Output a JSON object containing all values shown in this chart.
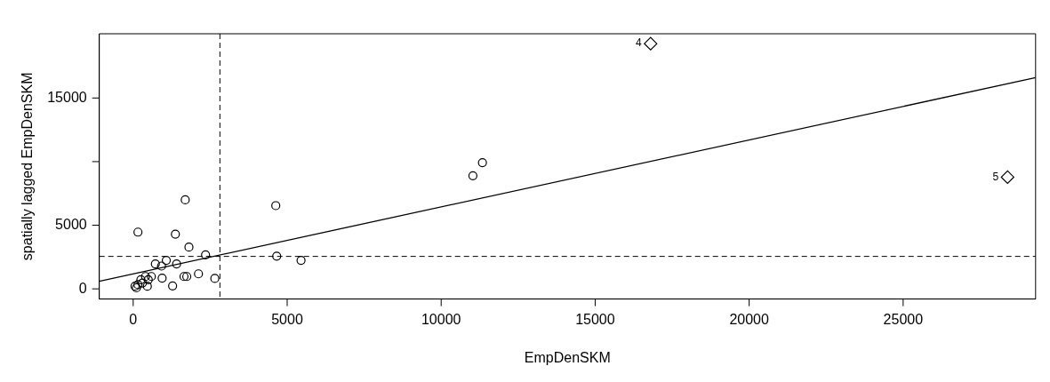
{
  "chart_data": {
    "type": "scatter",
    "xlabel": "EmpDenSKM",
    "ylabel": "spatially lagged EmpDenSKM",
    "xlim": [
      -1100,
      29300
    ],
    "ylim": [
      -800,
      20050
    ],
    "xticks": [
      0,
      5000,
      10000,
      15000,
      20000,
      25000
    ],
    "yticks": [
      0,
      5000,
      {
        "value": 10000,
        "label": null
      },
      15000
    ],
    "grid": false,
    "legend": false,
    "series": [
      {
        "type": "scatter",
        "marker": "circle",
        "color": "#000000",
        "x": [
          155,
          1690,
          1370,
          1810,
          2350,
          4630,
          4660,
          5450,
          1075,
          720,
          920,
          1410,
          940,
          1280,
          1650,
          1740,
          2120,
          2650,
          155,
          250,
          400,
          490,
          590,
          105,
          460,
          300,
          60,
          11030,
          11340
        ],
        "values": [
          4460,
          7000,
          4300,
          3280,
          2670,
          6540,
          2570,
          2240,
          2240,
          1960,
          1790,
          1960,
          840,
          230,
          970,
          970,
          1180,
          820,
          330,
          720,
          970,
          720,
          970,
          80,
          210,
          460,
          210,
          8890,
          9920
        ]
      },
      {
        "type": "scatter",
        "marker": "diamond",
        "color": "#000000",
        "x": [
          16800,
          28390
        ],
        "values": [
          19270,
          8780
        ]
      },
      {
        "type": "line",
        "marker": "none",
        "line_style": "solid",
        "color": "#000000",
        "x": [
          -1100,
          29300
        ],
        "values": [
          600,
          16600
        ]
      }
    ],
    "ref_lines": [
      {
        "axis": "x",
        "value": 2816,
        "line_style": "dashed",
        "color": "#000000"
      },
      {
        "axis": "y",
        "value": 2550,
        "line_style": "dashed",
        "color": "#000000"
      }
    ],
    "annotations": [
      {
        "text": "4",
        "x": 16800,
        "y": 19270
      },
      {
        "text": "5",
        "x": 28390,
        "y": 8780
      }
    ]
  }
}
